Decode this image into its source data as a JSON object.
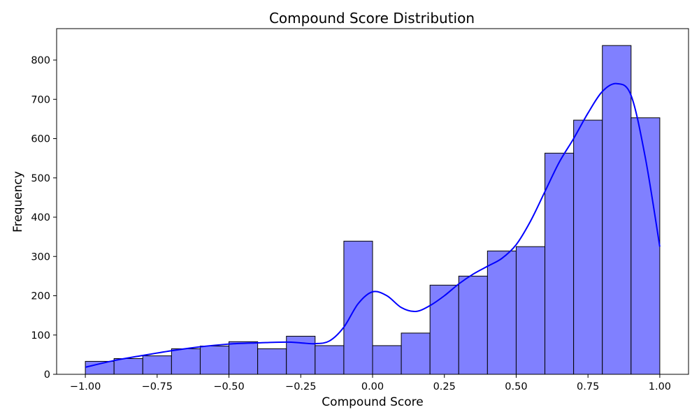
{
  "chart_data": {
    "type": "bar",
    "subtype": "histogram",
    "title": "Compound Score Distribution",
    "xlabel": "Compound Score",
    "ylabel": "Frequency",
    "xlim": [
      -1.1,
      1.1
    ],
    "ylim": [
      0,
      880
    ],
    "xticks": [
      -1.0,
      -0.75,
      -0.5,
      -0.25,
      0.0,
      0.25,
      0.5,
      0.75,
      1.0
    ],
    "xtick_labels": [
      "−1.00",
      "−0.75",
      "−0.50",
      "−0.25",
      "0.00",
      "0.25",
      "0.50",
      "0.75",
      "1.00"
    ],
    "yticks": [
      0,
      100,
      200,
      300,
      400,
      500,
      600,
      700,
      800
    ],
    "ytick_labels": [
      "0",
      "100",
      "200",
      "300",
      "400",
      "500",
      "600",
      "700",
      "800"
    ],
    "bin_edges": [
      -1.0,
      -0.9,
      -0.8,
      -0.7,
      -0.6,
      -0.5,
      -0.4,
      -0.3,
      -0.2,
      -0.1,
      0.0,
      0.1,
      0.2,
      0.3,
      0.4,
      0.5,
      0.6,
      0.7,
      0.8,
      0.9,
      1.0
    ],
    "values": [
      33,
      40,
      47,
      65,
      72,
      83,
      65,
      97,
      73,
      339,
      73,
      105,
      227,
      250,
      314,
      325,
      563,
      647,
      837,
      653
    ],
    "kde_curve": {
      "x": [
        -1.0,
        -0.9,
        -0.8,
        -0.7,
        -0.6,
        -0.5,
        -0.4,
        -0.3,
        -0.25,
        -0.2,
        -0.15,
        -0.1,
        -0.05,
        0.0,
        0.05,
        0.1,
        0.15,
        0.2,
        0.25,
        0.3,
        0.35,
        0.4,
        0.45,
        0.5,
        0.55,
        0.6,
        0.65,
        0.7,
        0.75,
        0.8,
        0.85,
        0.9,
        0.95,
        1.0
      ],
      "y": [
        18,
        35,
        48,
        60,
        70,
        77,
        80,
        82,
        80,
        78,
        85,
        120,
        180,
        210,
        200,
        170,
        160,
        175,
        200,
        230,
        255,
        275,
        295,
        330,
        390,
        465,
        540,
        600,
        665,
        720,
        740,
        710,
        550,
        325
      ]
    },
    "colors": {
      "bars": "#8080ff",
      "edge": "#000000",
      "kde": "#0000ff"
    },
    "grid": false
  }
}
